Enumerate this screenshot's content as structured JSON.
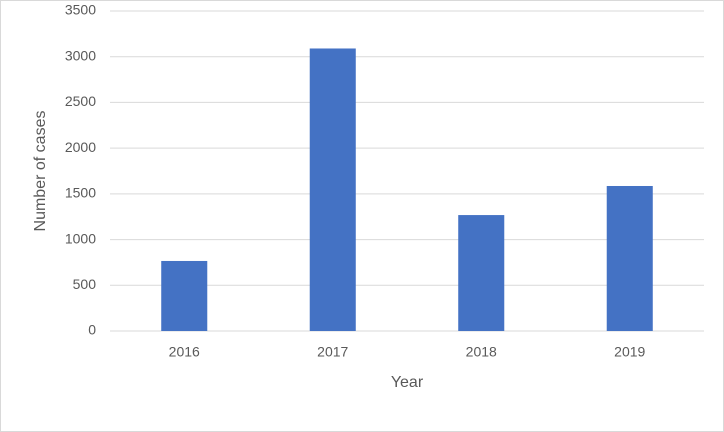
{
  "chart_data": {
    "type": "bar",
    "x_label": "Year",
    "y_label": "Number of cases",
    "categories": [
      "2016",
      "2017",
      "2018",
      "2019"
    ],
    "values": [
      766,
      3090,
      1268,
      1586
    ],
    "color": "#4472c4",
    "ylim": [
      0,
      3500
    ],
    "yticks": [
      0,
      500,
      1000,
      1500,
      2000,
      2500,
      3000,
      3500
    ],
    "grid": true
  }
}
